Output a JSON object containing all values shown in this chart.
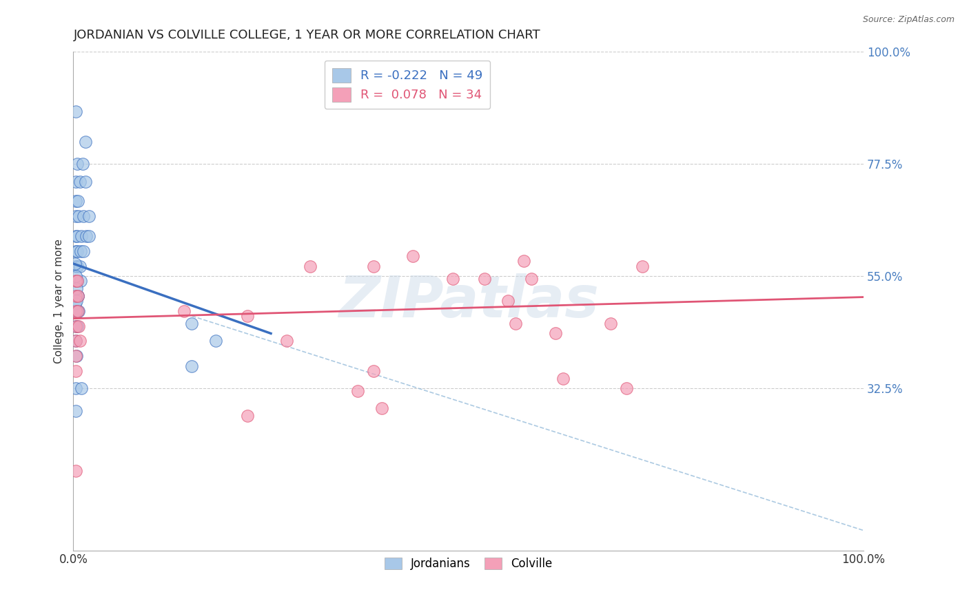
{
  "title": "JORDANIAN VS COLVILLE COLLEGE, 1 YEAR OR MORE CORRELATION CHART",
  "source": "Source: ZipAtlas.com",
  "ylabel": "College, 1 year or more",
  "xlim": [
    0.0,
    1.0
  ],
  "ylim": [
    0.0,
    1.0
  ],
  "ytick_labels": [
    "100.0%",
    "77.5%",
    "55.0%",
    "32.5%"
  ],
  "ytick_values": [
    1.0,
    0.775,
    0.55,
    0.325
  ],
  "xtick_labels": [
    "0.0%",
    "100.0%"
  ],
  "xtick_values": [
    0.0,
    1.0
  ],
  "blue_color": "#a8c8e8",
  "pink_color": "#f4a0b8",
  "blue_line_color": "#3a6fc0",
  "pink_line_color": "#e05575",
  "blue_scatter": [
    [
      0.003,
      0.88
    ],
    [
      0.015,
      0.82
    ],
    [
      0.005,
      0.775
    ],
    [
      0.012,
      0.775
    ],
    [
      0.003,
      0.74
    ],
    [
      0.008,
      0.74
    ],
    [
      0.015,
      0.74
    ],
    [
      0.003,
      0.7
    ],
    [
      0.006,
      0.7
    ],
    [
      0.003,
      0.67
    ],
    [
      0.007,
      0.67
    ],
    [
      0.013,
      0.67
    ],
    [
      0.02,
      0.67
    ],
    [
      0.003,
      0.63
    ],
    [
      0.005,
      0.63
    ],
    [
      0.01,
      0.63
    ],
    [
      0.016,
      0.63
    ],
    [
      0.02,
      0.63
    ],
    [
      0.003,
      0.6
    ],
    [
      0.005,
      0.6
    ],
    [
      0.009,
      0.6
    ],
    [
      0.013,
      0.6
    ],
    [
      0.003,
      0.57
    ],
    [
      0.005,
      0.57
    ],
    [
      0.008,
      0.57
    ],
    [
      0.003,
      0.54
    ],
    [
      0.005,
      0.54
    ],
    [
      0.009,
      0.54
    ],
    [
      0.003,
      0.51
    ],
    [
      0.006,
      0.51
    ],
    [
      0.003,
      0.48
    ],
    [
      0.007,
      0.48
    ],
    [
      0.003,
      0.45
    ],
    [
      0.005,
      0.45
    ],
    [
      0.003,
      0.42
    ],
    [
      0.004,
      0.39
    ],
    [
      0.15,
      0.455
    ],
    [
      0.003,
      0.325
    ],
    [
      0.01,
      0.325
    ],
    [
      0.15,
      0.37
    ],
    [
      0.003,
      0.28
    ],
    [
      0.006,
      0.51
    ],
    [
      0.002,
      0.495
    ],
    [
      0.004,
      0.525
    ],
    [
      0.003,
      0.55
    ],
    [
      0.002,
      0.575
    ],
    [
      0.004,
      0.5
    ],
    [
      0.005,
      0.48
    ],
    [
      0.18,
      0.42
    ]
  ],
  "pink_scatter": [
    [
      0.003,
      0.54
    ],
    [
      0.005,
      0.54
    ],
    [
      0.003,
      0.51
    ],
    [
      0.006,
      0.51
    ],
    [
      0.003,
      0.48
    ],
    [
      0.006,
      0.48
    ],
    [
      0.003,
      0.45
    ],
    [
      0.007,
      0.45
    ],
    [
      0.003,
      0.42
    ],
    [
      0.008,
      0.42
    ],
    [
      0.003,
      0.39
    ],
    [
      0.003,
      0.36
    ],
    [
      0.14,
      0.48
    ],
    [
      0.22,
      0.47
    ],
    [
      0.3,
      0.57
    ],
    [
      0.38,
      0.57
    ],
    [
      0.43,
      0.59
    ],
    [
      0.48,
      0.545
    ],
    [
      0.52,
      0.545
    ],
    [
      0.57,
      0.58
    ],
    [
      0.55,
      0.5
    ],
    [
      0.58,
      0.545
    ],
    [
      0.72,
      0.57
    ],
    [
      0.56,
      0.455
    ],
    [
      0.61,
      0.435
    ],
    [
      0.68,
      0.455
    ],
    [
      0.27,
      0.42
    ],
    [
      0.22,
      0.27
    ],
    [
      0.38,
      0.36
    ],
    [
      0.36,
      0.32
    ],
    [
      0.62,
      0.345
    ],
    [
      0.003,
      0.16
    ],
    [
      0.39,
      0.285
    ],
    [
      0.7,
      0.325
    ]
  ],
  "blue_line_x0": 0.0,
  "blue_line_x1": 0.25,
  "blue_line_y0": 0.575,
  "blue_line_y1": 0.435,
  "pink_line_x0": 0.0,
  "pink_line_x1": 1.0,
  "pink_line_y0": 0.465,
  "pink_line_y1": 0.508,
  "dash_line_x0": 0.15,
  "dash_line_x1": 1.0,
  "dash_line_y0": 0.47,
  "dash_line_y1": 0.04,
  "watermark_text": "ZIPatlas",
  "background_color": "#ffffff",
  "grid_color": "#cccccc",
  "right_label_color": "#4a7fc1",
  "title_fontsize": 13,
  "axis_label_fontsize": 11
}
